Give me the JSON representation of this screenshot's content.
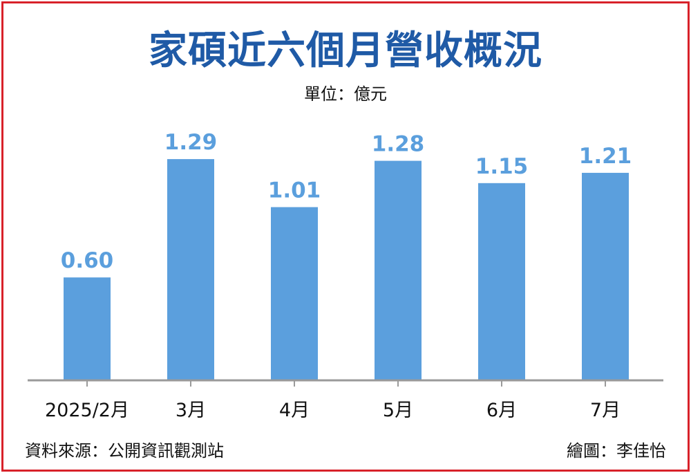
{
  "header": {
    "title": "家碩近六個月營收概況",
    "unit": "單位：億元"
  },
  "footer": {
    "source": "資料來源：公開資訊觀測站",
    "credit": "繪圖：李佳怡"
  },
  "colors": {
    "bar": "#5b9fdd",
    "value_label": "#5b9fdd",
    "title": "#1f5aa6",
    "border": "#d8212a",
    "axis": "#9a9a9a"
  },
  "chart_data": {
    "type": "bar",
    "title": "家碩近六個月營收概況",
    "ylabel": "單位：億元",
    "xlabel": "",
    "categories": [
      "2025/2月",
      "3月",
      "4月",
      "5月",
      "6月",
      "7月"
    ],
    "values": [
      0.6,
      1.29,
      1.01,
      1.28,
      1.15,
      1.21
    ],
    "value_labels": [
      "0.60",
      "1.29",
      "1.01",
      "1.28",
      "1.15",
      "1.21"
    ],
    "ylim": [
      0,
      1.5
    ],
    "grid": false,
    "legend": "none"
  }
}
